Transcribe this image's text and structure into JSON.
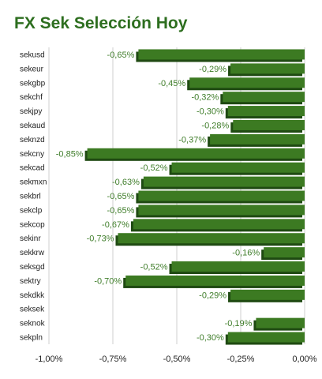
{
  "chart_data": {
    "type": "bar",
    "orientation": "horizontal",
    "title": "FX Sek Selección Hoy",
    "categories": [
      "sekusd",
      "sekeur",
      "sekgbp",
      "sekchf",
      "sekjpy",
      "sekaud",
      "seknzd",
      "sekcny",
      "sekcad",
      "sekmxn",
      "sekbrl",
      "sekclp",
      "sekcop",
      "sekinr",
      "sekkrw",
      "seksgd",
      "sektry",
      "sekdkk",
      "seksek",
      "seknok",
      "sekpln"
    ],
    "values": [
      -0.65,
      -0.29,
      -0.45,
      -0.32,
      -0.3,
      -0.28,
      -0.37,
      -0.85,
      -0.52,
      -0.63,
      -0.65,
      -0.65,
      -0.67,
      -0.73,
      -0.16,
      -0.52,
      -0.7,
      -0.29,
      null,
      -0.19,
      -0.3
    ],
    "data_labels": [
      "-0,65%",
      "-0,29%",
      "-0,45%",
      "-0,32%",
      "-0,30%",
      "-0,28%",
      "-0,37%",
      "-0,85%",
      "-0,52%",
      "-0,63%",
      "-0,65%",
      "-0,65%",
      "-0,67%",
      "-0,73%",
      "-0,16%",
      "-0,52%",
      "-0,70%",
      "-0,29%",
      "",
      "-0,19%",
      "-0,30%"
    ],
    "xlim": [
      -1.0,
      0.0
    ],
    "xticks": [
      -1.0,
      -0.75,
      -0.5,
      -0.25,
      0.0
    ],
    "xtick_labels": [
      "-1,00%",
      "-0,75%",
      "-0,50%",
      "-0,25%",
      "0,00%"
    ],
    "grid": true,
    "legend": "none",
    "bar_color": "#3c7a22",
    "bar_shadow_color": "#1f4a12",
    "label_color": "#3f7d2a",
    "title_color": "#2d6e1f"
  }
}
